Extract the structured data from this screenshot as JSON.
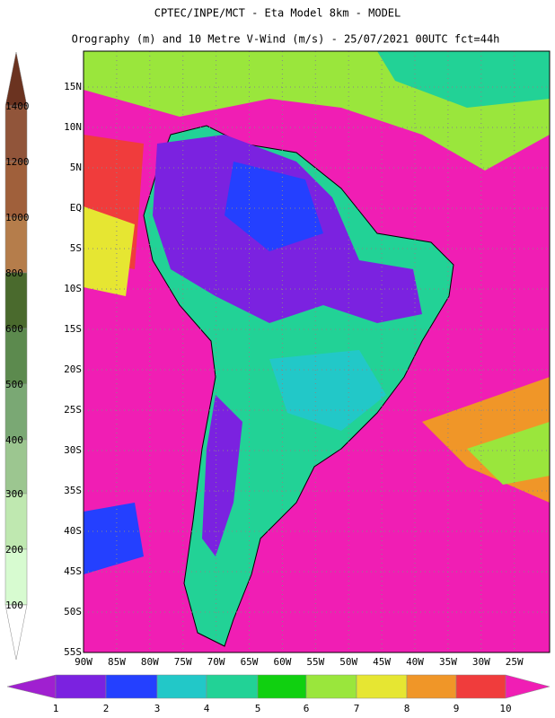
{
  "header": {
    "title": "CPTEC/INPE/MCT -  Eta Model 8km - MODEL",
    "subtitle": "Orography (m) and 10 Metre V-Wind (m/s) - 25/07/2021 00UTC fct=44h"
  },
  "map": {
    "lat_labels": [
      "15N",
      "10N",
      "5N",
      "EQ",
      "5S",
      "10S",
      "15S",
      "20S",
      "25S",
      "30S",
      "35S",
      "40S",
      "45S",
      "50S",
      "55S"
    ],
    "lon_labels": [
      "90W",
      "85W",
      "80W",
      "75W",
      "70W",
      "65W",
      "60W",
      "55W",
      "50W",
      "45W",
      "40W",
      "35W",
      "30W",
      "25W"
    ]
  },
  "orography_scale": {
    "labels": [
      1400,
      1200,
      1000,
      800,
      600,
      500,
      400,
      300,
      200,
      100
    ],
    "colors": [
      "#6b3320",
      "#91553a",
      "#a0603b",
      "#b57d4b",
      "#4a6a2d",
      "#5c8a4e",
      "#7aa874",
      "#9cc690",
      "#bfe8b0",
      "#d7fbd0",
      "#eafde6",
      "#ffffff"
    ]
  },
  "wind_scale": {
    "labels": [
      1,
      2,
      3,
      4,
      5,
      6,
      7,
      8,
      9,
      10
    ],
    "colors": [
      "#a020d0",
      "#7b22e0",
      "#2440ff",
      "#22c8c8",
      "#22d296",
      "#10d010",
      "#9ae63c",
      "#e6e632",
      "#f09628",
      "#f03c3c",
      "#f01eb4"
    ]
  }
}
